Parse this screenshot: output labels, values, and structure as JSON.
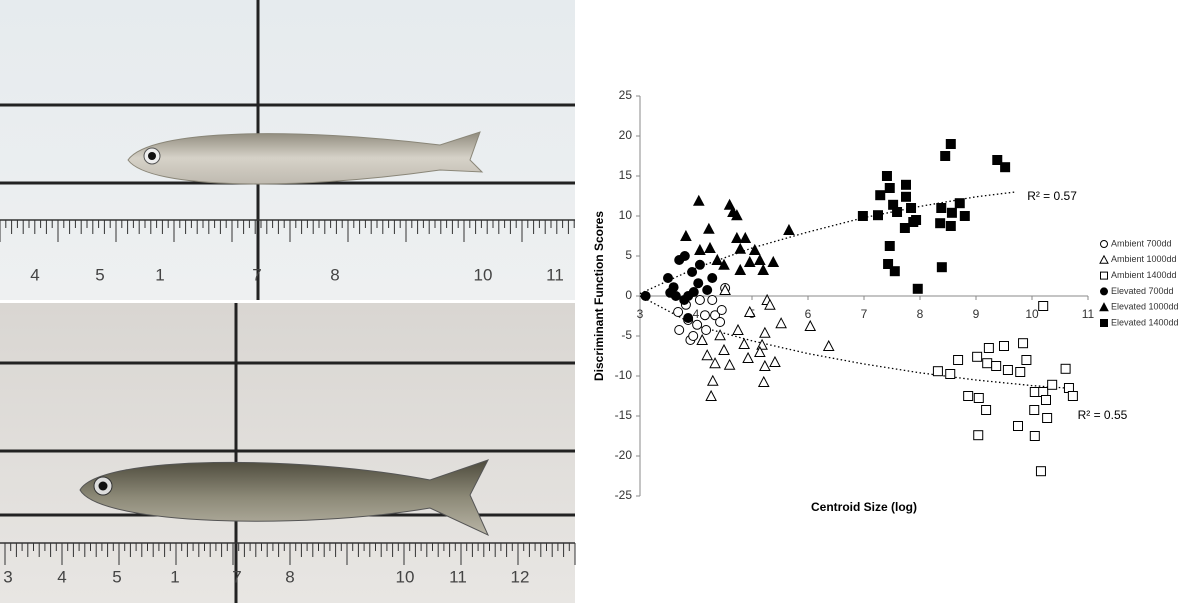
{
  "photos": [
    {
      "ruler_labels": [
        "4",
        "5",
        "1",
        "7",
        "8",
        "10",
        "11"
      ]
    },
    {
      "ruler_labels": [
        "3",
        "4",
        "5",
        "1",
        "7",
        "8",
        "10",
        "11",
        "12"
      ]
    }
  ],
  "chart_data": {
    "type": "scatter",
    "x_label": "Centroid Size (log)",
    "y_label": "Discriminant Function Scores",
    "xlim": [
      3,
      11
    ],
    "ylim": [
      -25,
      25
    ],
    "xticks": [
      3,
      4,
      5,
      6,
      7,
      8,
      9,
      10,
      11
    ],
    "yticks": [
      -25,
      -20,
      -15,
      -10,
      -5,
      0,
      5,
      10,
      15,
      20,
      25
    ],
    "legend": "right",
    "series": [
      {
        "name": "Ambient 700dd",
        "marker": "circle",
        "filled": false,
        "x": [
          3.9,
          3.7,
          3.86,
          4.02,
          4.18,
          4.34,
          4.43,
          4.46,
          3.82,
          3.68,
          4.07,
          4.29,
          4.52,
          3.95,
          4.16
        ],
        "values": [
          -5.5,
          -4.25,
          -3,
          -3.6,
          -4.25,
          -2.4,
          -3.25,
          -1.75,
          -1.1,
          -2,
          -0.5,
          -0.5,
          1,
          -5,
          -2.4
        ]
      },
      {
        "name": "Ambient 1000dd",
        "marker": "triangle",
        "filled": false,
        "x": [
          6.37,
          6.04,
          5.52,
          5.27,
          5.32,
          5.23,
          5.18,
          5.14,
          5.41,
          5.23,
          5.21,
          4.96,
          4.86,
          4.93,
          4.75,
          4.6,
          4.34,
          4.27,
          4.3,
          4.2,
          4.5,
          4.52,
          4.43,
          4.11
        ],
        "values": [
          -6.25,
          -3.75,
          -3.4,
          -0.5,
          -1.1,
          -4.6,
          -6.1,
          -7,
          -8.25,
          -8.75,
          -10.75,
          -2,
          -6,
          -7.75,
          -4.25,
          -8.6,
          -8.4,
          -12.5,
          -10.6,
          -7.4,
          -6.75,
          0.75,
          -4.9,
          -5.5
        ]
      },
      {
        "name": "Ambient 1400dd",
        "marker": "square",
        "filled": false,
        "x": [
          10.2,
          9.84,
          9.5,
          9.23,
          9.02,
          9.2,
          9.36,
          9.9,
          9.57,
          9.79,
          8.32,
          8.54,
          8.68,
          8.86,
          9.05,
          9.18,
          9.04,
          9.75,
          10.04,
          10.05,
          10.2,
          10.25,
          10.36,
          10.6,
          10.66,
          10.73,
          10.27,
          10.05,
          10.16
        ],
        "values": [
          -1.25,
          -5.9,
          -6.25,
          -6.5,
          -7.6,
          -8.4,
          -8.75,
          -8,
          -9.25,
          -9.5,
          -9.4,
          -9.75,
          -8,
          -12.5,
          -12.75,
          -14.25,
          -17.4,
          -16.25,
          -14.25,
          -12,
          -12,
          -13,
          -11.1,
          -9.1,
          -11.5,
          -12.5,
          -15.25,
          -17.5,
          -21.9
        ]
      },
      {
        "name": "Elevated 700dd",
        "marker": "circle",
        "filled": true,
        "x": [
          3.1,
          3.5,
          3.6,
          3.7,
          3.86,
          3.93,
          4.04,
          4.2,
          3.79,
          3.64,
          4.07,
          4.29,
          3.96,
          3.86,
          3.54,
          3.8
        ],
        "values": [
          0,
          2.25,
          1.1,
          4.5,
          0,
          3,
          1.6,
          0.75,
          -0.5,
          0,
          3.9,
          2.25,
          0.5,
          -2.75,
          0.4,
          5
        ]
      },
      {
        "name": "Elevated 1000dd",
        "marker": "triangle",
        "filled": true,
        "x": [
          4.05,
          4.6,
          4.73,
          4.66,
          3.82,
          4.23,
          4.25,
          4.73,
          4.88,
          4.79,
          5.05,
          5.14,
          5.66,
          5.2,
          5.38,
          4.79,
          4.38,
          4.5,
          4.96,
          4.07
        ],
        "values": [
          11.9,
          11.4,
          10.1,
          10.5,
          7.5,
          8.4,
          6,
          7.25,
          7.25,
          5.9,
          5.75,
          4.5,
          8.25,
          3.25,
          4.25,
          3.25,
          4.5,
          3.9,
          4.25,
          5.75
        ]
      },
      {
        "name": "Elevated 1400dd",
        "marker": "square",
        "filled": true,
        "x": [
          6.98,
          7.25,
          7.29,
          7.41,
          7.46,
          7.52,
          7.59,
          7.75,
          7.75,
          7.73,
          7.88,
          7.93,
          7.84,
          7.46,
          7.43,
          7.55,
          7.96,
          8.36,
          8.38,
          8.45,
          8.55,
          8.57,
          8.55,
          8.39,
          8.71,
          8.8,
          9.38,
          9.52
        ],
        "values": [
          10,
          10.1,
          12.6,
          15,
          13.5,
          11.4,
          10.5,
          13.9,
          12.4,
          8.5,
          9.25,
          9.5,
          11,
          6.25,
          4,
          3.1,
          0.9,
          9.1,
          11,
          17.5,
          19,
          10.4,
          8.75,
          3.6,
          11.6,
          10,
          17,
          16.1
        ]
      }
    ],
    "trendlines": [
      {
        "label": "R² = 0.57",
        "x": [
          3,
          4,
          5,
          6,
          7,
          8,
          9,
          9.7
        ],
        "values": [
          0.3,
          3.5,
          6,
          8,
          9.8,
          11.2,
          12.4,
          13
        ]
      },
      {
        "label": "R² = 0.55",
        "x": [
          3,
          4,
          5,
          6,
          7,
          8,
          9,
          10,
          10.6
        ],
        "values": [
          0,
          -3.7,
          -5.6,
          -7.2,
          -8.5,
          -9.6,
          -10.5,
          -11.2,
          -11.5
        ]
      }
    ]
  }
}
